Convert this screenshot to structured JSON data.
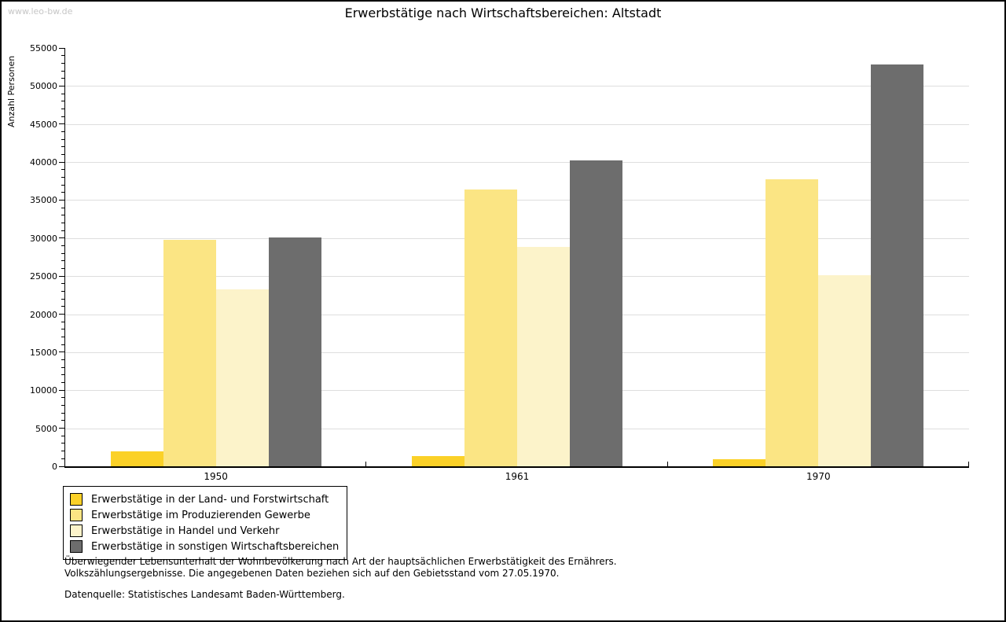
{
  "watermark": "www.leo-bw.de",
  "title": "Erwerbstätige nach Wirtschaftsbereichen: Altstadt",
  "chart_data": {
    "type": "bar",
    "title": "Erwerbstätige nach Wirtschaftsbereichen: Altstadt",
    "xlabel": "",
    "ylabel": "Anzahl Personen",
    "categories": [
      "1950",
      "1961",
      "1970"
    ],
    "series": [
      {
        "name": "Erwerbstätige in der Land- und Forstwirtschaft",
        "color": "#FBD128",
        "values": [
          2000,
          1300,
          900
        ]
      },
      {
        "name": "Erwerbstätige im Produzierenden Gewerbe",
        "color": "#FBE584",
        "values": [
          29800,
          36400,
          37700
        ]
      },
      {
        "name": "Erwerbstätige in Handel und Verkehr",
        "color": "#FCF3CA",
        "values": [
          23250,
          28800,
          25100
        ]
      },
      {
        "name": "Erwerbstätige in sonstigen Wirtschaftsbereichen",
        "color": "#6D6D6D",
        "values": [
          30050,
          40200,
          52800
        ]
      }
    ],
    "ylim": [
      0,
      55000
    ],
    "ytick_step": 5000,
    "minor_tick_step": 1000,
    "grid": "horizontal",
    "legend_position": "bottom-left"
  },
  "footnotes": {
    "line1": "Überwiegender Lebensunterhalt der Wohnbevölkerung nach Art der hauptsächlichen Erwerbstätigkeit des Ernährers.",
    "line2": "Volkszählungsergebnisse. Die angegebenen Daten beziehen sich auf den Gebietsstand vom 27.05.1970.",
    "source": "Datenquelle: Statistisches Landesamt Baden-Württemberg."
  },
  "colors": {
    "axis": "#000000",
    "grid": "#DEDEDE",
    "watermark_text": "#C6C6C6",
    "background": "#FFFFFF"
  }
}
